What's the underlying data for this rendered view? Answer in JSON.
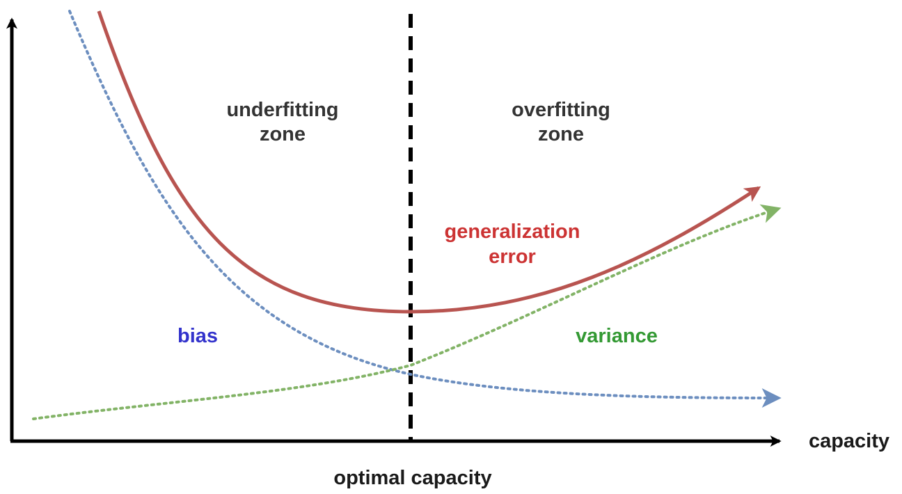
{
  "labels": {
    "underfitting_line1": "underfitting",
    "underfitting_line2": "zone",
    "overfitting_line1": "overfitting",
    "overfitting_line2": "zone",
    "generalization_line1": "generalization",
    "generalization_line2": "error",
    "bias": "bias",
    "variance": "variance",
    "x_axis": "capacity",
    "optimal": "optimal capacity"
  },
  "colors": {
    "axis": "#000000",
    "generalization_error": "#b85450",
    "bias_curve": "#6c8ebf",
    "bias_text": "#3333cc",
    "variance_curve": "#82b366",
    "variance_text": "#339933",
    "divider": "#000000"
  }
}
